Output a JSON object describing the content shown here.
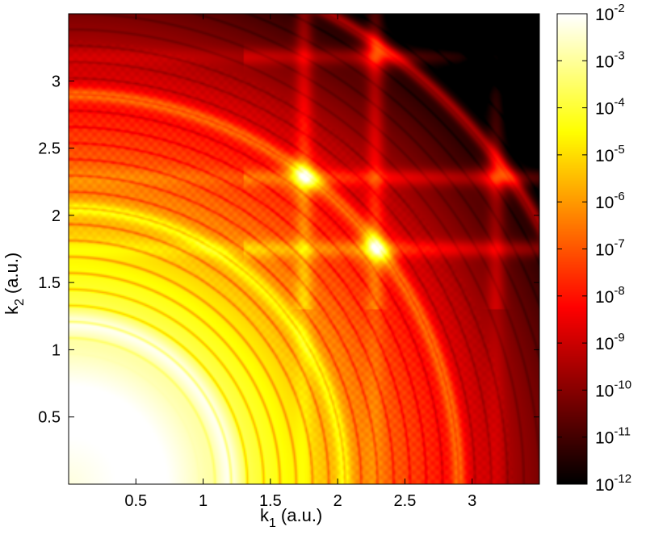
{
  "chart_data": {
    "type": "heatmap",
    "xlabel_main": "k",
    "xlabel_sub": "1",
    "xlabel_units": "(a.u.)",
    "ylabel_main": "k",
    "ylabel_sub": "2",
    "ylabel_units": "(a.u.)",
    "xlim": [
      0,
      3.5
    ],
    "ylim": [
      0,
      3.5
    ],
    "xticks": [
      "0.5",
      "1",
      "1.5",
      "2",
      "2.5",
      "3"
    ],
    "xtick_values": [
      0.5,
      1,
      1.5,
      2,
      2.5,
      3
    ],
    "yticks": [
      "0.5",
      "1",
      "1.5",
      "2",
      "2.5",
      "3"
    ],
    "ytick_values": [
      0.5,
      1,
      1.5,
      2,
      2.5,
      3
    ],
    "colormap": "hot",
    "color_scale": "log",
    "colorbar_range": [
      1e-12,
      0.01
    ],
    "colorbar_exponents": [
      "-12",
      "-11",
      "-10",
      "-9",
      "-8",
      "-7",
      "-6",
      "-5",
      "-4",
      "-3",
      "-2"
    ],
    "colorbar_base": "10",
    "colors": {
      "low": "#000000",
      "mid_low": "#8b0000",
      "mid": "#ff2000",
      "mid_high": "#ffb000",
      "high": "#ffffff"
    },
    "features": {
      "central_lobe_radius": 1.0,
      "rings": [
        1.2,
        2.05,
        2.9,
        4.0
      ],
      "cross_points": [
        {
          "k1": 1.75,
          "k2": 2.28
        },
        {
          "k1": 2.28,
          "k2": 1.75
        },
        {
          "k1": 2.28,
          "k2": 3.18
        },
        {
          "k1": 3.18,
          "k2": 2.28
        }
      ],
      "stripes_k": [
        1.75,
        2.28,
        3.18
      ]
    }
  }
}
